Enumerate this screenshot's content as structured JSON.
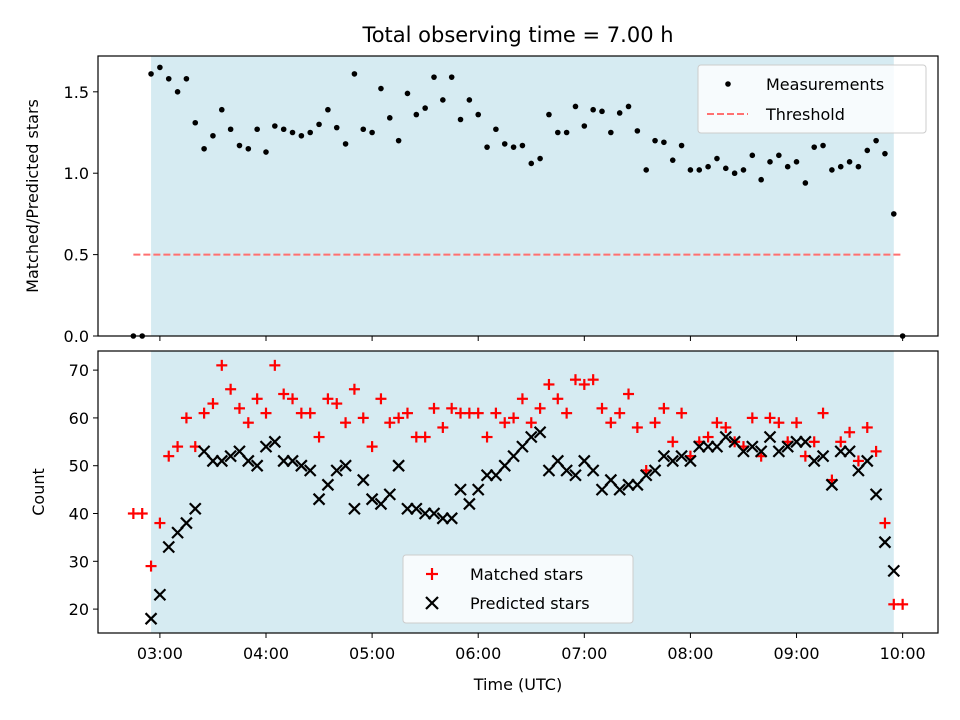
{
  "chart_data": [
    {
      "type": "scatter",
      "title": "Total observing time = 7.00 h",
      "ylabel": "Matched/Predicted stars",
      "xlim": [
        "02:25",
        "10:20"
      ],
      "ylim": [
        0,
        1.72
      ],
      "yticks": [
        "0.0",
        "0.5",
        "1.0",
        "1.5"
      ],
      "shaded_span": [
        "02:55",
        "09:55"
      ],
      "shade_color": "#add8e6",
      "legend_position": "top-right",
      "series": [
        {
          "name": "Measurements",
          "marker": "dot",
          "color": "#000000",
          "x": [
            "02:45",
            "02:50",
            "02:55",
            "03:00",
            "03:05",
            "03:10",
            "03:15",
            "03:20",
            "03:25",
            "03:30",
            "03:35",
            "03:40",
            "03:45",
            "03:50",
            "03:55",
            "04:00",
            "04:05",
            "04:10",
            "04:15",
            "04:20",
            "04:25",
            "04:30",
            "04:35",
            "04:40",
            "04:45",
            "04:50",
            "04:55",
            "05:00",
            "05:05",
            "05:10",
            "05:15",
            "05:20",
            "05:25",
            "05:30",
            "05:35",
            "05:40",
            "05:45",
            "05:50",
            "05:55",
            "06:00",
            "06:05",
            "06:10",
            "06:15",
            "06:20",
            "06:25",
            "06:30",
            "06:35",
            "06:40",
            "06:45",
            "06:50",
            "06:55",
            "07:00",
            "07:05",
            "07:10",
            "07:15",
            "07:20",
            "07:25",
            "07:30",
            "07:35",
            "07:40",
            "07:45",
            "07:50",
            "07:55",
            "08:00",
            "08:05",
            "08:10",
            "08:15",
            "08:20",
            "08:25",
            "08:30",
            "08:35",
            "08:40",
            "08:45",
            "08:50",
            "08:55",
            "09:00",
            "09:05",
            "09:10",
            "09:15",
            "09:20",
            "09:25",
            "09:30",
            "09:35",
            "09:40",
            "09:45",
            "09:50",
            "09:55",
            "10:00"
          ],
          "y": [
            0.0,
            0.0,
            1.61,
            1.65,
            1.58,
            1.5,
            1.58,
            1.31,
            1.15,
            1.23,
            1.39,
            1.27,
            1.17,
            1.15,
            1.27,
            1.13,
            1.29,
            1.27,
            1.25,
            1.23,
            1.25,
            1.3,
            1.39,
            1.28,
            1.18,
            1.61,
            1.27,
            1.25,
            1.52,
            1.34,
            1.2,
            1.49,
            1.36,
            1.4,
            1.59,
            1.45,
            1.59,
            1.33,
            1.45,
            1.36,
            1.16,
            1.27,
            1.18,
            1.16,
            1.17,
            1.06,
            1.09,
            1.36,
            1.25,
            1.25,
            1.41,
            1.29,
            1.39,
            1.38,
            1.25,
            1.37,
            1.41,
            1.26,
            1.02,
            1.2,
            1.19,
            1.08,
            1.17,
            1.02,
            1.02,
            1.04,
            1.09,
            1.03,
            1.0,
            1.02,
            1.11,
            0.96,
            1.07,
            1.11,
            1.04,
            1.07,
            0.94,
            1.16,
            1.17,
            1.02,
            1.04,
            1.07,
            1.04,
            1.14,
            1.2,
            1.12,
            0.75,
            0.0
          ]
        },
        {
          "name": "Threshold",
          "marker": "dashed-line",
          "color": "#ff7070",
          "x": [
            "02:45",
            "10:00"
          ],
          "y": [
            0.5,
            0.5
          ]
        }
      ]
    },
    {
      "type": "scatter",
      "xlabel": "Time (UTC)",
      "ylabel": "Count",
      "xlim": [
        "02:25",
        "10:20"
      ],
      "ylim": [
        15,
        74
      ],
      "xticks": [
        "03:00",
        "04:00",
        "05:00",
        "06:00",
        "07:00",
        "08:00",
        "09:00",
        "10:00"
      ],
      "yticks": [
        "20",
        "30",
        "40",
        "50",
        "60",
        "70"
      ],
      "shaded_span": [
        "02:55",
        "09:55"
      ],
      "shade_color": "#add8e6",
      "legend_position": "bottom-center",
      "series": [
        {
          "name": "Matched stars",
          "marker": "plus",
          "color": "#ff0000",
          "x": [
            "02:45",
            "02:50",
            "02:55",
            "03:00",
            "03:05",
            "03:10",
            "03:15",
            "03:20",
            "03:25",
            "03:30",
            "03:35",
            "03:40",
            "03:45",
            "03:50",
            "03:55",
            "04:00",
            "04:05",
            "04:10",
            "04:15",
            "04:20",
            "04:25",
            "04:30",
            "04:35",
            "04:40",
            "04:45",
            "04:50",
            "04:55",
            "05:00",
            "05:05",
            "05:10",
            "05:15",
            "05:20",
            "05:25",
            "05:30",
            "05:35",
            "05:40",
            "05:45",
            "05:50",
            "05:55",
            "06:00",
            "06:05",
            "06:10",
            "06:15",
            "06:20",
            "06:25",
            "06:30",
            "06:35",
            "06:40",
            "06:45",
            "06:50",
            "06:55",
            "07:00",
            "07:05",
            "07:10",
            "07:15",
            "07:20",
            "07:25",
            "07:30",
            "07:35",
            "07:40",
            "07:45",
            "07:50",
            "07:55",
            "08:00",
            "08:05",
            "08:10",
            "08:15",
            "08:20",
            "08:25",
            "08:30",
            "08:35",
            "08:40",
            "08:45",
            "08:50",
            "08:55",
            "09:00",
            "09:05",
            "09:10",
            "09:15",
            "09:20",
            "09:25",
            "09:30",
            "09:35",
            "09:40",
            "09:45",
            "09:50",
            "09:55",
            "10:00"
          ],
          "y": [
            40,
            40,
            29,
            38,
            52,
            54,
            60,
            54,
            61,
            63,
            71,
            66,
            62,
            59,
            64,
            61,
            71,
            65,
            64,
            61,
            61,
            56,
            64,
            63,
            59,
            66,
            60,
            54,
            64,
            59,
            60,
            61,
            56,
            56,
            62,
            58,
            62,
            61,
            61,
            61,
            56,
            61,
            59,
            60,
            64,
            59,
            62,
            67,
            64,
            61,
            68,
            67,
            68,
            62,
            59,
            61,
            65,
            58,
            49,
            59,
            62,
            55,
            61,
            52,
            55,
            56,
            59,
            58,
            55,
            54,
            60,
            52,
            60,
            59,
            55,
            59,
            52,
            55,
            61,
            47,
            55,
            57,
            51,
            58,
            53,
            38,
            21,
            21
          ]
        },
        {
          "name": "Predicted stars",
          "marker": "x",
          "color": "#000000",
          "x": [
            "02:55",
            "03:00",
            "03:05",
            "03:10",
            "03:15",
            "03:20",
            "03:25",
            "03:30",
            "03:35",
            "03:40",
            "03:45",
            "03:50",
            "03:55",
            "04:00",
            "04:05",
            "04:10",
            "04:15",
            "04:20",
            "04:25",
            "04:30",
            "04:35",
            "04:40",
            "04:45",
            "04:50",
            "04:55",
            "05:00",
            "05:05",
            "05:10",
            "05:15",
            "05:20",
            "05:25",
            "05:30",
            "05:35",
            "05:40",
            "05:45",
            "05:50",
            "05:55",
            "06:00",
            "06:05",
            "06:10",
            "06:15",
            "06:20",
            "06:25",
            "06:30",
            "06:35",
            "06:40",
            "06:45",
            "06:50",
            "06:55",
            "07:00",
            "07:05",
            "07:10",
            "07:15",
            "07:20",
            "07:25",
            "07:30",
            "07:35",
            "07:40",
            "07:45",
            "07:50",
            "07:55",
            "08:00",
            "08:05",
            "08:10",
            "08:15",
            "08:20",
            "08:25",
            "08:30",
            "08:35",
            "08:40",
            "08:45",
            "08:50",
            "08:55",
            "09:00",
            "09:05",
            "09:10",
            "09:15",
            "09:20",
            "09:25",
            "09:30",
            "09:35",
            "09:40",
            "09:45",
            "09:50",
            "09:55"
          ],
          "y": [
            18,
            23,
            33,
            36,
            38,
            41,
            53,
            51,
            51,
            52,
            53,
            51,
            50,
            54,
            55,
            51,
            51,
            50,
            49,
            43,
            46,
            49,
            50,
            41,
            47,
            43,
            42,
            44,
            50,
            41,
            41,
            40,
            40,
            39,
            39,
            45,
            42,
            45,
            48,
            48,
            50,
            52,
            54,
            56,
            57,
            49,
            51,
            49,
            48,
            51,
            49,
            45,
            47,
            45,
            46,
            46,
            48,
            49,
            52,
            51,
            52,
            51,
            54,
            54,
            54,
            56,
            55,
            53,
            54,
            53,
            56,
            53,
            54,
            55,
            55,
            51,
            52,
            46,
            53,
            53,
            49,
            51,
            44,
            34,
            28
          ]
        }
      ]
    }
  ]
}
